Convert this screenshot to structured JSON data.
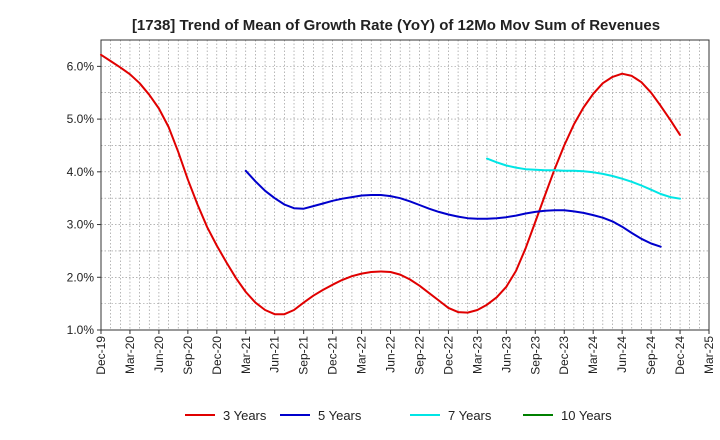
{
  "chart_data": {
    "type": "line",
    "title": "[1738]  Trend of Mean of Growth Rate (YoY) of 12Mo Mov Sum of Revenues",
    "xlabel": "",
    "ylabel": "",
    "ylim": [
      1.0,
      6.5
    ],
    "yticks": [
      1.0,
      2.0,
      3.0,
      4.0,
      5.0,
      6.0
    ],
    "ytick_labels": [
      "1.0%",
      "2.0%",
      "3.0%",
      "4.0%",
      "5.0%",
      "6.0%"
    ],
    "x_start": "Dec-19",
    "x_months": 63,
    "xtick_labels": [
      "Dec-19",
      "Mar-20",
      "Jun-20",
      "Sep-20",
      "Dec-20",
      "Mar-21",
      "Jun-21",
      "Sep-21",
      "Dec-21",
      "Mar-22",
      "Jun-22",
      "Sep-22",
      "Dec-22",
      "Mar-23",
      "Jun-23",
      "Sep-23",
      "Dec-23",
      "Mar-24",
      "Jun-24",
      "Sep-24",
      "Dec-24",
      "Mar-25"
    ],
    "grid": true,
    "legend_position": "bottom",
    "series": [
      {
        "name": "3 Years",
        "color": "#e00000",
        "start_index": 0,
        "values": [
          6.22,
          6.1,
          5.98,
          5.85,
          5.68,
          5.46,
          5.2,
          4.85,
          4.38,
          3.85,
          3.38,
          2.95,
          2.6,
          2.28,
          1.98,
          1.72,
          1.52,
          1.38,
          1.3,
          1.3,
          1.38,
          1.52,
          1.65,
          1.76,
          1.86,
          1.95,
          2.02,
          2.07,
          2.1,
          2.11,
          2.1,
          2.05,
          1.96,
          1.84,
          1.7,
          1.56,
          1.42,
          1.34,
          1.33,
          1.38,
          1.48,
          1.62,
          1.82,
          2.12,
          2.55,
          3.05,
          3.55,
          4.05,
          4.5,
          4.9,
          5.22,
          5.48,
          5.68,
          5.8,
          5.86,
          5.82,
          5.7,
          5.5,
          5.25,
          4.98,
          4.7
        ]
      },
      {
        "name": "5 Years",
        "color": "#0000cc",
        "start_index": 15,
        "values": [
          4.02,
          3.82,
          3.64,
          3.5,
          3.38,
          3.31,
          3.3,
          3.35,
          3.4,
          3.45,
          3.49,
          3.52,
          3.55,
          3.56,
          3.56,
          3.54,
          3.5,
          3.44,
          3.37,
          3.3,
          3.24,
          3.19,
          3.15,
          3.12,
          3.11,
          3.11,
          3.12,
          3.14,
          3.17,
          3.21,
          3.24,
          3.26,
          3.27,
          3.27,
          3.25,
          3.22,
          3.18,
          3.13,
          3.06,
          2.96,
          2.84,
          2.73,
          2.64,
          2.58
        ]
      },
      {
        "name": "7 Years",
        "color": "#00e5e5",
        "start_index": 40,
        "values": [
          4.25,
          4.18,
          4.12,
          4.08,
          4.05,
          4.04,
          4.03,
          4.03,
          4.02,
          4.02,
          4.01,
          3.99,
          3.96,
          3.92,
          3.87,
          3.81,
          3.74,
          3.66,
          3.58,
          3.52,
          3.49
        ]
      },
      {
        "name": "10 Years",
        "color": "#008000",
        "start_index": 0,
        "values": []
      }
    ]
  }
}
